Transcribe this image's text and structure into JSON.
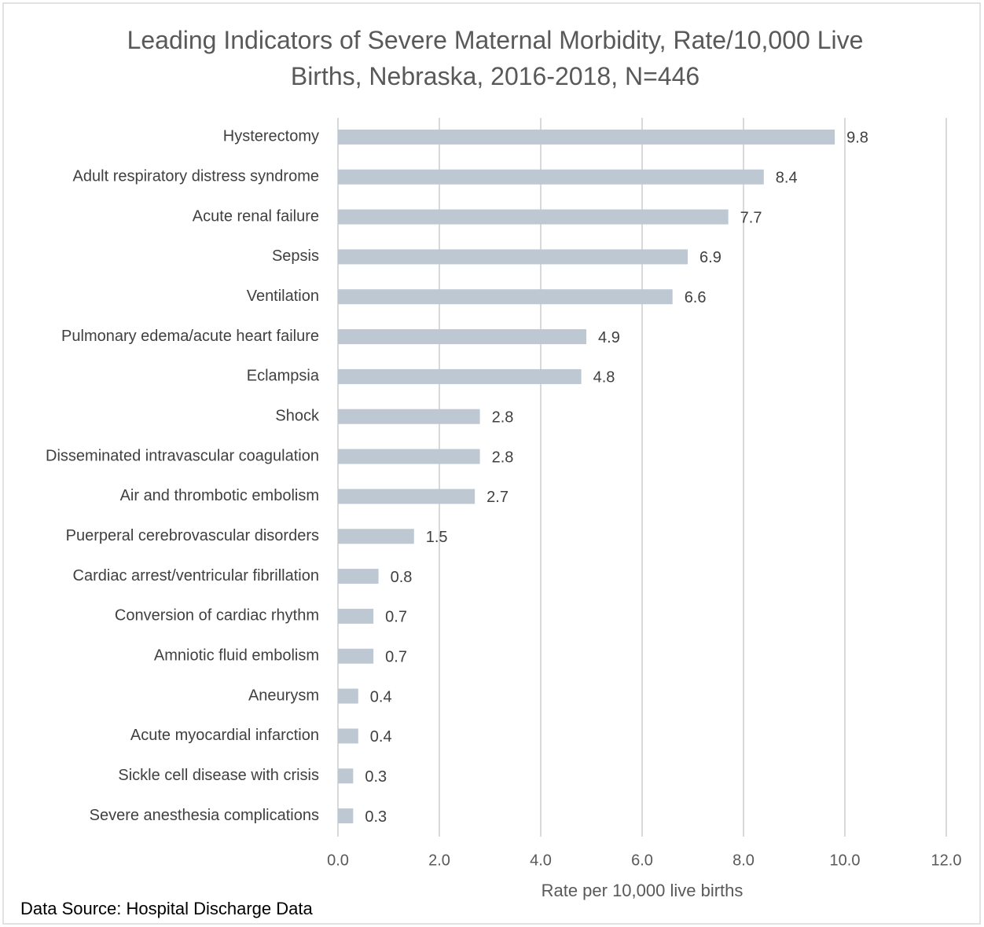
{
  "chart_data": {
    "type": "barh",
    "title": "Leading Indicators of Severe Maternal Morbidity, Rate/10,000 Live Births, Nebraska, 2016-2018, N=446",
    "x_label": "Rate per 10,000 live births",
    "source": "Data Source: Hospital Discharge Data",
    "categories": [
      "Hysterectomy",
      "Adult respiratory distress syndrome",
      "Acute renal failure",
      "Sepsis",
      "Ventilation",
      "Pulmonary edema/acute heart failure",
      "Eclampsia",
      "Shock",
      "Disseminated intravascular coagulation",
      "Air and thrombotic embolism",
      "Puerperal cerebrovascular disorders",
      "Cardiac arrest/ventricular fibrillation",
      "Conversion of cardiac rhythm",
      "Amniotic fluid embolism",
      "Aneurysm",
      "Acute myocardial infarction",
      "Sickle cell disease with crisis",
      "Severe anesthesia complications"
    ],
    "values": [
      9.8,
      8.4,
      7.7,
      6.9,
      6.6,
      4.9,
      4.8,
      2.8,
      2.8,
      2.7,
      1.5,
      0.8,
      0.7,
      0.7,
      0.4,
      0.4,
      0.3,
      0.3
    ],
    "color": "#bdc8d2",
    "xlim": [
      0,
      12
    ],
    "xticks": [
      {
        "value": 0,
        "label": "0.0"
      },
      {
        "value": 2,
        "label": "2.0"
      },
      {
        "value": 4,
        "label": "4.0"
      },
      {
        "value": 6,
        "label": "6.0"
      },
      {
        "value": 8,
        "label": "8.0"
      },
      {
        "value": 10,
        "label": "10.0"
      },
      {
        "value": 12,
        "label": "12.0"
      }
    ],
    "grid": true
  }
}
